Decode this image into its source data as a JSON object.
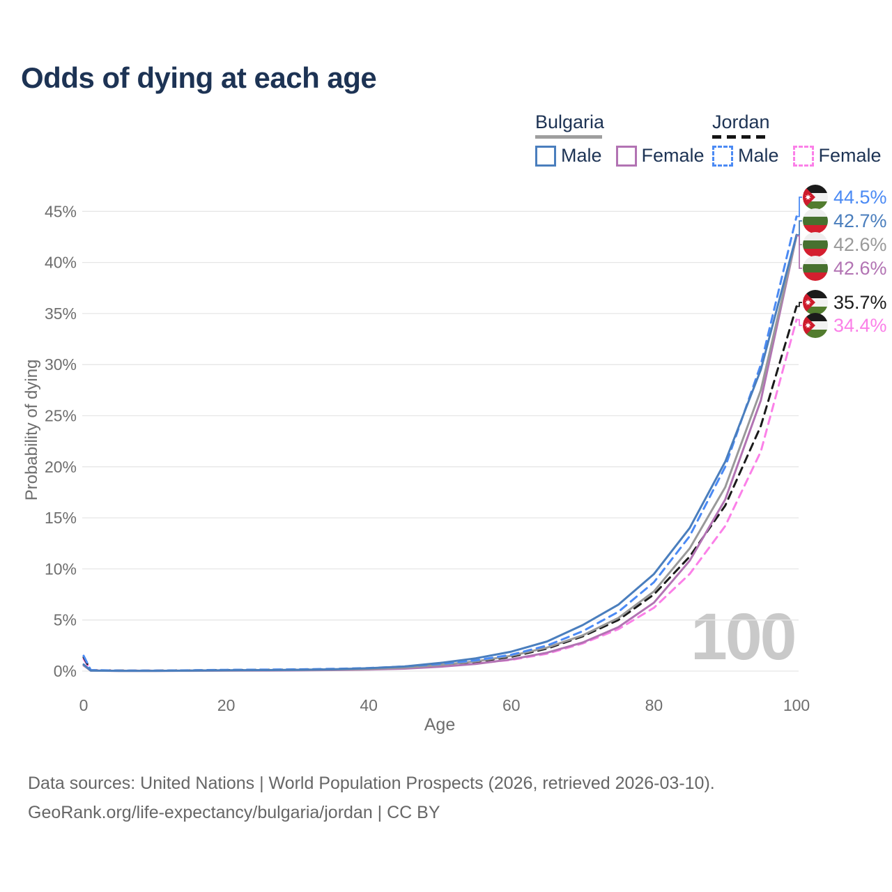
{
  "title": "Odds of dying at each age",
  "legend": {
    "groups": [
      {
        "name": "Bulgaria",
        "line_style": "solid",
        "underline_color": "#9e9e9e",
        "items": [
          {
            "label": "Male",
            "color": "#4a7ebd"
          },
          {
            "label": "Female",
            "color": "#b273b3"
          }
        ]
      },
      {
        "name": "Jordan",
        "line_style": "dashed",
        "underline_color": "#141414",
        "items": [
          {
            "label": "Male",
            "color": "#4b8af4"
          },
          {
            "label": "Female",
            "color": "#fb80e8"
          }
        ]
      }
    ]
  },
  "watermark": "100",
  "footer": {
    "line1": "Data sources: United Nations | World Population Prospects (2026, retrieved 2026-03-10).",
    "line2": "GeoRank.org/life-expectancy/bulgaria/jordan | CC BY"
  },
  "chart_data": {
    "type": "line",
    "title": "Odds of dying at each age",
    "xlabel": "Age",
    "ylabel": "Probability of dying",
    "xlim": [
      0,
      100
    ],
    "ylim_percent": [
      0,
      47
    ],
    "x_ticks": [
      0,
      20,
      40,
      60,
      80,
      100
    ],
    "y_ticks_percent": [
      0,
      5,
      10,
      15,
      20,
      25,
      30,
      35,
      40,
      45
    ],
    "grid": "horizontal",
    "ages": [
      0,
      1,
      5,
      10,
      15,
      20,
      25,
      30,
      35,
      40,
      45,
      50,
      55,
      60,
      65,
      70,
      75,
      80,
      85,
      90,
      95,
      100
    ],
    "series": [
      {
        "name": "Jordan Female",
        "country": "Jordan",
        "sex": "Female",
        "color": "#fb80e8",
        "dashed": true,
        "end_value_percent": 34.4,
        "values_percent": [
          1.2,
          0.08,
          0.04,
          0.04,
          0.05,
          0.07,
          0.09,
          0.11,
          0.14,
          0.2,
          0.3,
          0.5,
          0.75,
          1.1,
          1.7,
          2.7,
          4.1,
          6.2,
          9.5,
          14.2,
          21.5,
          34.4
        ]
      },
      {
        "name": "Jordan Both sexes",
        "country": "Jordan",
        "sex": "Both",
        "color": "#1a1a1a",
        "dashed": true,
        "end_value_percent": 35.7,
        "values_percent": [
          1.35,
          0.09,
          0.05,
          0.04,
          0.07,
          0.1,
          0.12,
          0.14,
          0.18,
          0.25,
          0.38,
          0.6,
          0.9,
          1.4,
          2.2,
          3.4,
          5.0,
          7.5,
          11.2,
          16.2,
          24.0,
          35.7
        ]
      },
      {
        "name": "Bulgaria Female",
        "country": "Bulgaria",
        "sex": "Female",
        "color": "#b273b3",
        "dashed": false,
        "end_value_percent": 42.6,
        "values_percent": [
          0.55,
          0.04,
          0.02,
          0.02,
          0.03,
          0.04,
          0.05,
          0.07,
          0.1,
          0.15,
          0.24,
          0.42,
          0.7,
          1.15,
          1.8,
          2.8,
          4.3,
          6.7,
          10.8,
          16.8,
          26.5,
          42.6
        ]
      },
      {
        "name": "Bulgaria Both sexes",
        "country": "Bulgaria",
        "sex": "Both",
        "color": "#999999",
        "dashed": false,
        "end_value_percent": 42.6,
        "values_percent": [
          0.6,
          0.05,
          0.03,
          0.03,
          0.04,
          0.06,
          0.08,
          0.1,
          0.14,
          0.21,
          0.34,
          0.6,
          0.95,
          1.5,
          2.3,
          3.5,
          5.2,
          7.8,
          12.0,
          18.0,
          27.5,
          42.6
        ]
      },
      {
        "name": "Jordan Male",
        "country": "Jordan",
        "sex": "Male",
        "color": "#4b8af4",
        "dashed": true,
        "end_value_percent": 44.5,
        "values_percent": [
          1.5,
          0.1,
          0.05,
          0.05,
          0.08,
          0.12,
          0.14,
          0.17,
          0.22,
          0.3,
          0.45,
          0.7,
          1.05,
          1.6,
          2.5,
          3.9,
          5.8,
          8.7,
          13.2,
          20.0,
          30.0,
          44.5
        ]
      },
      {
        "name": "Bulgaria Male",
        "country": "Bulgaria",
        "sex": "Male",
        "color": "#4a7ebd",
        "dashed": false,
        "end_value_percent": 42.7,
        "values_percent": [
          0.65,
          0.05,
          0.03,
          0.03,
          0.05,
          0.08,
          0.1,
          0.13,
          0.18,
          0.28,
          0.45,
          0.8,
          1.25,
          1.9,
          2.9,
          4.5,
          6.5,
          9.5,
          14.0,
          20.5,
          29.5,
          42.7
        ]
      }
    ],
    "end_labels": [
      {
        "text": "44.5%",
        "series": "Jordan Male",
        "flag": "jordan",
        "color": "#4b8af4"
      },
      {
        "text": "42.7%",
        "series": "Bulgaria Male",
        "flag": "bulgaria",
        "color": "#4a7ebd"
      },
      {
        "text": "42.6%",
        "series": "Bulgaria Both sexes",
        "flag": "bulgaria",
        "color": "#999999"
      },
      {
        "text": "42.6%",
        "series": "Bulgaria Female",
        "flag": "bulgaria",
        "color": "#b273b3"
      },
      {
        "text": "35.7%",
        "series": "Jordan Both sexes",
        "flag": "jordan",
        "color": "#1a1a1a"
      },
      {
        "text": "34.4%",
        "series": "Jordan Female",
        "flag": "jordan",
        "color": "#fb80e8"
      }
    ]
  }
}
